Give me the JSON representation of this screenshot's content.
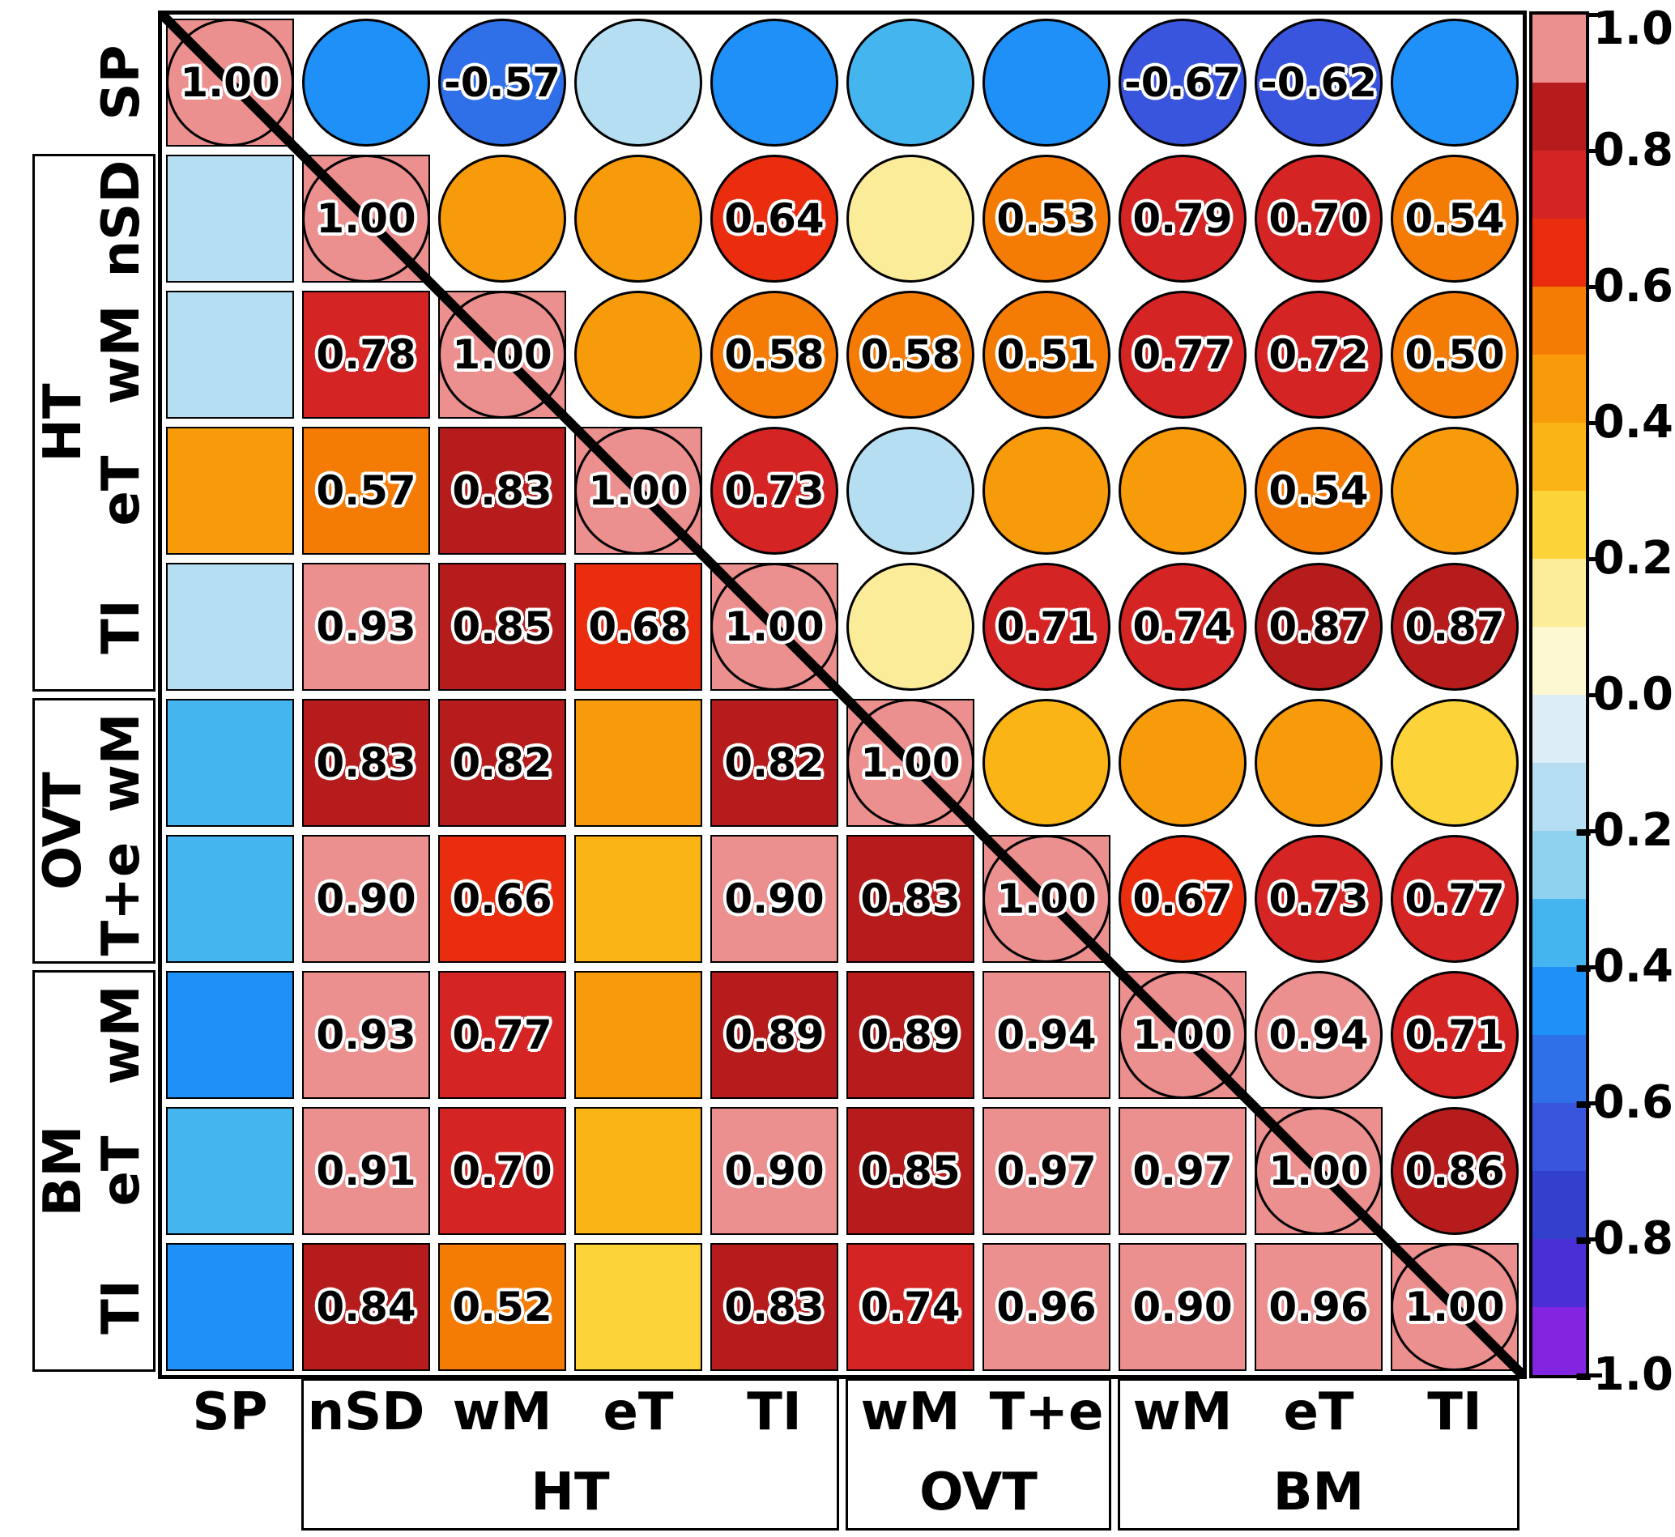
{
  "figure": {
    "background": "#ffffff",
    "description": "Correlation matrix plot: circles in upper triangle, squares in lower triangle, 1.00 on diagonal"
  },
  "chart_data": {
    "type": "heatmap",
    "subtype": "correlation-matrix",
    "upper_triangle_glyph": "circle",
    "lower_triangle_glyph": "square",
    "diagonal_label": "1.00",
    "row_labels": [
      "SP",
      "nSD",
      "wM",
      "eT",
      "TI",
      "wM",
      "T+e",
      "wM",
      "eT",
      "TI"
    ],
    "col_labels": [
      "SP",
      "nSD",
      "wM",
      "eT",
      "TI",
      "wM",
      "T+e",
      "wM",
      "eT",
      "TI"
    ],
    "row_groups": [
      {
        "label": "HT",
        "start": 2,
        "end": 5
      },
      {
        "label": "OVT",
        "start": 6,
        "end": 7
      },
      {
        "label": "BM",
        "start": 8,
        "end": 10
      }
    ],
    "col_groups": [
      {
        "label": "HT",
        "start": 2,
        "end": 5
      },
      {
        "label": "OVT",
        "start": 6,
        "end": 7
      },
      {
        "label": "BM",
        "start": 8,
        "end": 10
      }
    ],
    "matrix": [
      [
        1.0,
        -0.45,
        -0.57,
        -0.18,
        -0.45,
        -0.32,
        -0.45,
        -0.67,
        -0.62,
        -0.45
      ],
      [
        -0.18,
        1.0,
        0.47,
        0.47,
        0.64,
        0.12,
        0.53,
        0.79,
        0.7,
        0.54
      ],
      [
        -0.18,
        0.78,
        1.0,
        0.47,
        0.58,
        0.58,
        0.51,
        0.77,
        0.72,
        0.5
      ],
      [
        0.45,
        0.57,
        0.83,
        1.0,
        0.73,
        -0.15,
        0.45,
        0.45,
        0.54,
        0.45
      ],
      [
        -0.18,
        0.93,
        0.85,
        0.68,
        1.0,
        0.1,
        0.71,
        0.74,
        0.87,
        0.87
      ],
      [
        -0.32,
        0.83,
        0.82,
        0.47,
        0.82,
        1.0,
        0.32,
        0.42,
        0.42,
        0.25
      ],
      [
        -0.32,
        0.9,
        0.66,
        0.38,
        0.9,
        0.83,
        1.0,
        0.67,
        0.73,
        0.77
      ],
      [
        -0.45,
        0.93,
        0.77,
        0.45,
        0.89,
        0.89,
        0.94,
        1.0,
        0.94,
        0.71
      ],
      [
        -0.35,
        0.91,
        0.7,
        0.38,
        0.9,
        0.85,
        0.97,
        0.97,
        1.0,
        0.86
      ],
      [
        -0.45,
        0.84,
        0.52,
        0.28,
        0.83,
        0.74,
        0.96,
        0.9,
        0.96,
        1.0
      ]
    ],
    "cell_labels": [
      [
        "1.00",
        "",
        "-0.57",
        "",
        "",
        "",
        "",
        "-0.67",
        "-0.62",
        ""
      ],
      [
        "",
        "1.00",
        "",
        "",
        "0.64",
        "",
        "0.53",
        "0.79",
        "0.70",
        "0.54"
      ],
      [
        "",
        "0.78",
        "1.00",
        "",
        "0.58",
        "0.58",
        "0.51",
        "0.77",
        "0.72",
        "0.50"
      ],
      [
        "",
        "0.57",
        "0.83",
        "1.00",
        "0.73",
        "",
        "",
        "",
        "0.54",
        ""
      ],
      [
        "",
        "0.93",
        "0.85",
        "0.68",
        "1.00",
        "",
        "0.71",
        "0.74",
        "0.87",
        "0.87"
      ],
      [
        "",
        "0.83",
        "0.82",
        "",
        "0.82",
        "1.00",
        "",
        "",
        "",
        ""
      ],
      [
        "",
        "0.90",
        "0.66",
        "",
        "0.90",
        "0.83",
        "1.00",
        "0.67",
        "0.73",
        "0.77"
      ],
      [
        "",
        "0.93",
        "0.77",
        "",
        "0.89",
        "0.89",
        "0.94",
        "1.00",
        "0.94",
        "0.71"
      ],
      [
        "",
        "0.91",
        "0.70",
        "",
        "0.90",
        "0.85",
        "0.97",
        "0.97",
        "1.00",
        "0.86"
      ],
      [
        "",
        "0.84",
        "0.52",
        "",
        "0.83",
        "0.74",
        "0.96",
        "0.90",
        "0.96",
        "1.00"
      ]
    ],
    "colorbar": {
      "min": -1,
      "max": 1,
      "ticks": [
        "1.0",
        "0.8",
        "0.6",
        "0.4",
        "0.2",
        "0.0",
        "-0.2",
        "-0.4",
        "-0.6",
        "-0.8",
        "-1.0"
      ],
      "position": "right"
    },
    "palette_bins": [
      {
        "min": 0.9,
        "color": "#ec8f8f"
      },
      {
        "min": 0.8,
        "color": "#b71c1c"
      },
      {
        "min": 0.7,
        "color": "#d42424"
      },
      {
        "min": 0.6,
        "color": "#ea2d0e"
      },
      {
        "min": 0.5,
        "color": "#f57c04"
      },
      {
        "min": 0.4,
        "color": "#f89b0a"
      },
      {
        "min": 0.3,
        "color": "#fbb415"
      },
      {
        "min": 0.2,
        "color": "#fcd338"
      },
      {
        "min": 0.1,
        "color": "#fbec9a"
      },
      {
        "min": 0.0,
        "color": "#fdf7d2"
      },
      {
        "min": -0.1,
        "color": "#ddedf6"
      },
      {
        "min": -0.2,
        "color": "#b5def2"
      },
      {
        "min": -0.3,
        "color": "#8ed2f0"
      },
      {
        "min": -0.4,
        "color": "#45b5f0"
      },
      {
        "min": -0.5,
        "color": "#1e90f8"
      },
      {
        "min": -0.6,
        "color": "#2f6fe8"
      },
      {
        "min": -0.7,
        "color": "#3a55dd"
      },
      {
        "min": -0.8,
        "color": "#3340cc"
      },
      {
        "min": -0.9,
        "color": "#4b2fd6"
      },
      {
        "min": -1.0,
        "color": "#8224e0"
      }
    ]
  }
}
